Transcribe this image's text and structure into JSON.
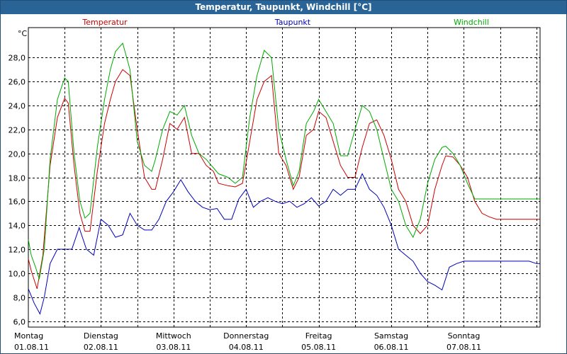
{
  "window_title": "Temperatur, Taupunkt, Windchill [°C]",
  "colors": {
    "frame": "#1f4f7a",
    "title_bg": "#2a6496",
    "grid": "#000000",
    "series": [
      "#cc0000",
      "#0000bb",
      "#00aa00"
    ]
  },
  "chart_data": {
    "type": "line",
    "title": "Temperatur, Taupunkt, Windchill [°C]",
    "ylabel": "°C",
    "xlabel": "",
    "ylim": [
      5.5,
      30.5
    ],
    "xlim": [
      0,
      7.05
    ],
    "grid": true,
    "legend_placement": "top",
    "y_ticks": [
      6,
      8,
      10,
      12,
      14,
      16,
      18,
      20,
      22,
      24,
      26,
      28
    ],
    "y_tick_labels": [
      "6,0",
      "8,0",
      "10,0",
      "12,0",
      "14,0",
      "16,0",
      "18,0",
      "20,0",
      "22,0",
      "24,0",
      "26,0",
      "28,0"
    ],
    "x_ticks": [
      {
        "x": 0,
        "day": "Montag",
        "date": "01.08.11"
      },
      {
        "x": 1,
        "day": "Dienstag",
        "date": "02.08.11"
      },
      {
        "x": 2,
        "day": "Mittwoch",
        "date": "03.08.11"
      },
      {
        "x": 3,
        "day": "Donnerstag",
        "date": "04.08.11"
      },
      {
        "x": 4,
        "day": "Freitag",
        "date": "05.08.11"
      },
      {
        "x": 5,
        "day": "Samstag",
        "date": "06.08.11"
      },
      {
        "x": 6,
        "day": "Sonntag",
        "date": "07.08.11"
      }
    ],
    "x_grid": [
      0,
      0.5,
      1,
      1.5,
      2,
      2.5,
      3,
      3.5,
      4,
      4.5,
      5,
      5.5,
      6,
      6.5,
      7
    ],
    "series": [
      {
        "name": "Temperatur",
        "color": "#cc0000",
        "legend_pos": "left",
        "x": [
          0,
          0.04,
          0.12,
          0.2,
          0.3,
          0.4,
          0.5,
          0.55,
          0.63,
          0.71,
          0.78,
          0.85,
          0.95,
          1.05,
          1.13,
          1.2,
          1.3,
          1.4,
          1.5,
          1.6,
          1.7,
          1.75,
          1.85,
          1.95,
          2.05,
          2.15,
          2.25,
          2.35,
          2.45,
          2.55,
          2.62,
          2.75,
          2.85,
          2.95,
          3.05,
          3.15,
          3.25,
          3.35,
          3.45,
          3.55,
          3.65,
          3.73,
          3.83,
          3.93,
          4.0,
          4.1,
          4.2,
          4.3,
          4.4,
          4.5,
          4.6,
          4.7,
          4.8,
          4.9,
          5.0,
          5.1,
          5.2,
          5.3,
          5.4,
          5.5,
          5.6,
          5.7,
          5.75,
          5.85,
          5.95,
          6.05,
          6.15,
          6.25,
          6.35,
          6.45,
          6.55,
          6.65,
          6.75,
          6.85,
          6.95,
          7.05
        ],
        "y": [
          11.2,
          10.2,
          8.7,
          11.5,
          19.0,
          23.0,
          24.6,
          24.2,
          19.0,
          15.0,
          13.5,
          13.5,
          18.5,
          22.5,
          24.5,
          26.0,
          27.0,
          26.5,
          22.0,
          18.0,
          17.0,
          17.0,
          19.5,
          22.5,
          22.0,
          23.0,
          20.0,
          20.0,
          19.0,
          18.5,
          17.5,
          17.3,
          17.2,
          17.5,
          21.0,
          24.5,
          26.0,
          26.5,
          20.0,
          19.0,
          17.0,
          18.0,
          21.5,
          22.0,
          23.5,
          23.0,
          21.0,
          19.0,
          18.0,
          18.0,
          20.5,
          22.5,
          22.8,
          21.5,
          19.5,
          17.0,
          16.0,
          14.0,
          13.3,
          14.0,
          17.0,
          19.0,
          19.8,
          19.7,
          19.0,
          18.0,
          16.0,
          15.0,
          14.7,
          14.5,
          14.5,
          14.5,
          14.5,
          14.5,
          14.5,
          14.5
        ]
      },
      {
        "name": "Taupunkt",
        "color": "#0000bb",
        "legend_pos": "center",
        "x": [
          0,
          0.08,
          0.16,
          0.22,
          0.3,
          0.4,
          0.5,
          0.6,
          0.7,
          0.8,
          0.9,
          1.0,
          1.1,
          1.2,
          1.3,
          1.4,
          1.5,
          1.6,
          1.7,
          1.8,
          1.9,
          2.0,
          2.1,
          2.2,
          2.3,
          2.4,
          2.5,
          2.6,
          2.7,
          2.8,
          2.9,
          3.0,
          3.1,
          3.2,
          3.3,
          3.4,
          3.5,
          3.6,
          3.7,
          3.8,
          3.9,
          4.0,
          4.1,
          4.2,
          4.3,
          4.4,
          4.5,
          4.6,
          4.7,
          4.8,
          4.9,
          5.0,
          5.1,
          5.2,
          5.3,
          5.4,
          5.5,
          5.6,
          5.7,
          5.8,
          5.9,
          6.0,
          6.1,
          6.2,
          6.3,
          6.4,
          6.5,
          6.6,
          6.7,
          6.8,
          6.9,
          7.0,
          7.05
        ],
        "y": [
          8.7,
          7.5,
          6.6,
          8.0,
          10.8,
          12.0,
          12.0,
          12.0,
          13.8,
          12.0,
          11.5,
          14.5,
          14.0,
          13.0,
          13.2,
          15.0,
          14.0,
          13.6,
          13.6,
          14.5,
          16.0,
          16.8,
          17.8,
          16.8,
          16.0,
          15.5,
          15.3,
          15.4,
          14.5,
          14.5,
          16.2,
          17.0,
          15.5,
          16.0,
          16.3,
          16.0,
          15.8,
          16.0,
          15.5,
          15.8,
          16.3,
          15.6,
          16.0,
          17.0,
          16.5,
          17.0,
          17.0,
          18.3,
          17.0,
          16.5,
          15.5,
          14.0,
          12.0,
          11.5,
          11.0,
          10.0,
          9.3,
          9.0,
          8.6,
          10.5,
          10.8,
          11.0,
          11.0,
          11.0,
          11.0,
          11.0,
          11.0,
          11.0,
          11.0,
          11.0,
          11.0,
          10.8,
          10.8
        ]
      },
      {
        "name": "Windchill",
        "color": "#00aa00",
        "legend_pos": "right",
        "x": [
          0,
          0.04,
          0.1,
          0.15,
          0.22,
          0.3,
          0.4,
          0.5,
          0.55,
          0.63,
          0.71,
          0.78,
          0.85,
          0.95,
          1.05,
          1.13,
          1.2,
          1.3,
          1.4,
          1.5,
          1.6,
          1.7,
          1.75,
          1.85,
          1.95,
          2.05,
          2.15,
          2.25,
          2.35,
          2.45,
          2.55,
          2.62,
          2.75,
          2.85,
          2.95,
          3.05,
          3.15,
          3.25,
          3.35,
          3.45,
          3.55,
          3.65,
          3.73,
          3.83,
          3.93,
          4.0,
          4.1,
          4.2,
          4.3,
          4.4,
          4.5,
          4.6,
          4.7,
          4.8,
          4.9,
          5.0,
          5.1,
          5.2,
          5.3,
          5.4,
          5.5,
          5.6,
          5.7,
          5.75,
          5.85,
          5.95,
          6.05,
          6.15,
          6.25,
          6.35,
          6.45,
          6.55,
          6.65,
          6.75,
          6.85,
          6.95,
          7.05
        ],
        "y": [
          12.8,
          11.5,
          10.5,
          9.5,
          12.0,
          19.5,
          24.5,
          26.3,
          26.0,
          20.0,
          16.0,
          14.6,
          15.0,
          20.5,
          24.5,
          27.0,
          28.5,
          29.2,
          27.0,
          21.0,
          19.0,
          18.5,
          19.5,
          22.0,
          23.5,
          23.2,
          24.0,
          21.5,
          20.0,
          19.5,
          18.8,
          18.3,
          18.0,
          17.5,
          18.0,
          23.0,
          26.5,
          28.6,
          28.0,
          22.0,
          19.5,
          17.3,
          18.5,
          22.5,
          23.5,
          24.5,
          23.5,
          22.5,
          19.8,
          19.8,
          22.0,
          24.0,
          23.5,
          22.0,
          19.5,
          17.0,
          16.0,
          14.0,
          13.0,
          14.5,
          17.5,
          19.5,
          20.5,
          20.6,
          20.0,
          19.0,
          17.5,
          16.2,
          16.2,
          16.2,
          16.2,
          16.2,
          16.2,
          16.2,
          16.2,
          16.2,
          16.2
        ]
      }
    ]
  }
}
